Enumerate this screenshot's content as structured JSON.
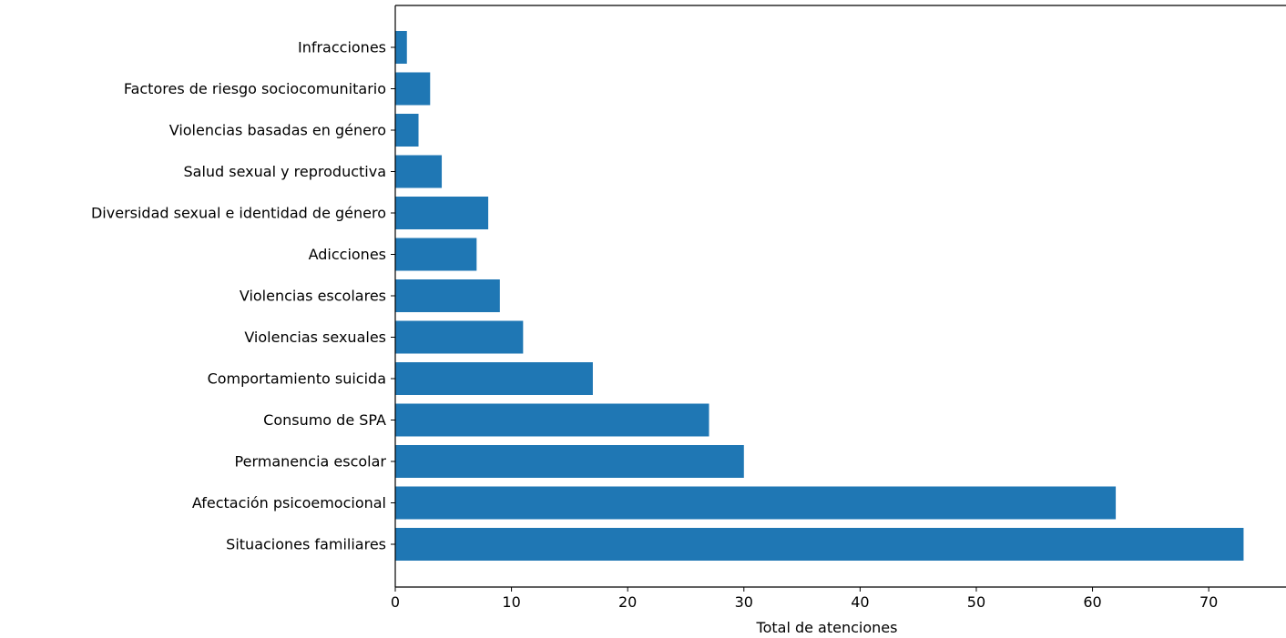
{
  "chart_data": {
    "type": "bar",
    "orientation": "horizontal",
    "categories": [
      "Situaciones familiares",
      "Afectación psicoemocional",
      "Permanencia escolar",
      "Consumo de SPA",
      "Comportamiento suicida",
      "Violencias sexuales",
      "Violencias escolares",
      "Adicciones",
      "Diversidad sexual e identidad de género",
      "Salud sexual y reproductiva",
      "Violencias basadas en género",
      "Factores de riesgo sociocomunitario",
      "Infracciones"
    ],
    "values": [
      73,
      62,
      30,
      27,
      17,
      11,
      9,
      7,
      8,
      4,
      2,
      3,
      1
    ],
    "xlabel": "Total de atenciones",
    "ylabel": "",
    "xlim": [
      0,
      76.65
    ],
    "xticks": [
      0,
      10,
      20,
      30,
      40,
      50,
      60,
      70
    ],
    "grid": false,
    "bar_color": "#1f77b4"
  }
}
